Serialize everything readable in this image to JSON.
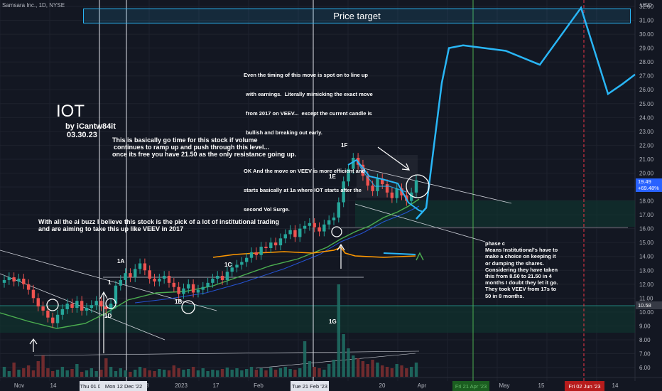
{
  "header": {
    "symbol_line": "Samsara Inc., 1D, NYSE"
  },
  "price_axis": {
    "currency": "USD",
    "ticks": [
      "32.00",
      "31.00",
      "30.00",
      "29.00",
      "28.00",
      "27.00",
      "26.00",
      "25.00",
      "24.00",
      "23.00",
      "22.00",
      "21.00",
      "20.00",
      "19.00",
      "18.00",
      "17.00",
      "16.00",
      "15.00",
      "14.00",
      "13.00",
      "12.00",
      "11.00",
      "10.00",
      "9.00",
      "8.00",
      "7.00",
      "6.00"
    ],
    "current_price": "19.49",
    "current_change": "+69.48%",
    "level_tag": "10.58",
    "colors": {
      "current": "#2962ff",
      "level": "#363a45"
    }
  },
  "time_axis": {
    "labels": [
      "Nov",
      "14",
      "28",
      "2023",
      "17",
      "Feb",
      "20",
      "Apr",
      "May",
      "15",
      "14"
    ],
    "highlights": [
      {
        "text": "Thu 01 De",
        "style": "white"
      },
      {
        "text": "Mon 12 Dec '22",
        "style": "white"
      },
      {
        "text": "Tue 21 Feb '23",
        "style": "white"
      },
      {
        "text": "Fri 21 Apr '23",
        "style": "green"
      },
      {
        "text": "Fri 02 Jun '23",
        "style": "red"
      }
    ]
  },
  "annotations": {
    "price_target": "Price target",
    "ticker": "IOT",
    "author": "by iCantw84it",
    "date": "03.30.23",
    "go_time": [
      "This is basically go time for this stock if volume",
      "continues to ramp up and push through this level...",
      "once its free you have 21.50 as the only resistance going up."
    ],
    "timing": [
      "Even the timing of this move is spot on to line up",
      "with earnings.  Literally mimicking the exact move",
      "from 2017 on VEEV...  except the current candle is",
      "bullish and breaking out early.",
      "",
      "OK And the move on VEEV is more efficient and",
      "starts basically at 1a where IOT starts after the",
      "second Vol Surge."
    ],
    "ai_buzz": [
      "With all the ai buzz I believe this stock is the pick of a lot of institutional trading",
      "and are aiming to take this up like VEEV  in 2017"
    ],
    "phase_c": [
      "phase c",
      "Means Institutional's have to",
      "make a choice on keeping it",
      "or dumping the shares.",
      "Considering they have taken",
      "this from 8.50 to 21.50 in 4",
      "months I doubt they let it go.",
      "They took VEEV from 17s to",
      "50 in 8 months."
    ],
    "labels": [
      "1F",
      "1E",
      "1A",
      "1",
      "1C",
      "1B",
      "1D",
      "1G"
    ]
  },
  "chart_data": {
    "type": "candlestick",
    "symbol": "Samsara Inc., 1D, NYSE",
    "y_axis": {
      "min": 5.5,
      "max": 32.5,
      "unit": "USD"
    },
    "current_price": 19.49,
    "candles_close": [
      12.3,
      12.5,
      12.2,
      12.4,
      12.0,
      11.6,
      11.0,
      10.4,
      10.1,
      9.6,
      9.2,
      9.8,
      10.2,
      10.6,
      10.3,
      10.8,
      10.1,
      10.3,
      10.5,
      10.8,
      10.4,
      10.2,
      10.6,
      11.9,
      12.3,
      12.8,
      12.5,
      13.1,
      13.5,
      13.0,
      12.4,
      12.2,
      12.4,
      12.6,
      12.1,
      11.8,
      11.3,
      11.7,
      12.0,
      11.4,
      11.6,
      11.8,
      12.1,
      12.4,
      12.6,
      12.3,
      12.9,
      13.2,
      13.4,
      13.6,
      13.9,
      14.3,
      14.1,
      14.7,
      14.6,
      15.0,
      14.8,
      15.3,
      15.6,
      15.9,
      15.4,
      16.0,
      16.2,
      16.4,
      16.1,
      15.8,
      16.3,
      16.6,
      16.8,
      17.9,
      19.4,
      20.3,
      21.1,
      20.6,
      19.8,
      19.1,
      18.7,
      19.6,
      19.2,
      18.6,
      18.2,
      18.9,
      18.4,
      18.0,
      18.6,
      19.49
    ],
    "projection": {
      "x": [
        "Mar 30 '23",
        "Apr 03 '23",
        "Apr 06 '23",
        "Apr 11 '23",
        "Apr 14 '23",
        "Apr 27 '23",
        "May 12 '23",
        "May 24 '23",
        "Jun 05 '23",
        "Jun 14 '23",
        "Jun 26 '23"
      ],
      "y": [
        16.7,
        17.5,
        26.5,
        29.0,
        29.2,
        28.8,
        27.8,
        31.9,
        25.7,
        26.4,
        27.1
      ]
    },
    "levels": {
      "price_target": [
        31.1,
        32.1
      ],
      "support": 16.25,
      "lower_zone": [
        8.7,
        10.6
      ]
    }
  }
}
